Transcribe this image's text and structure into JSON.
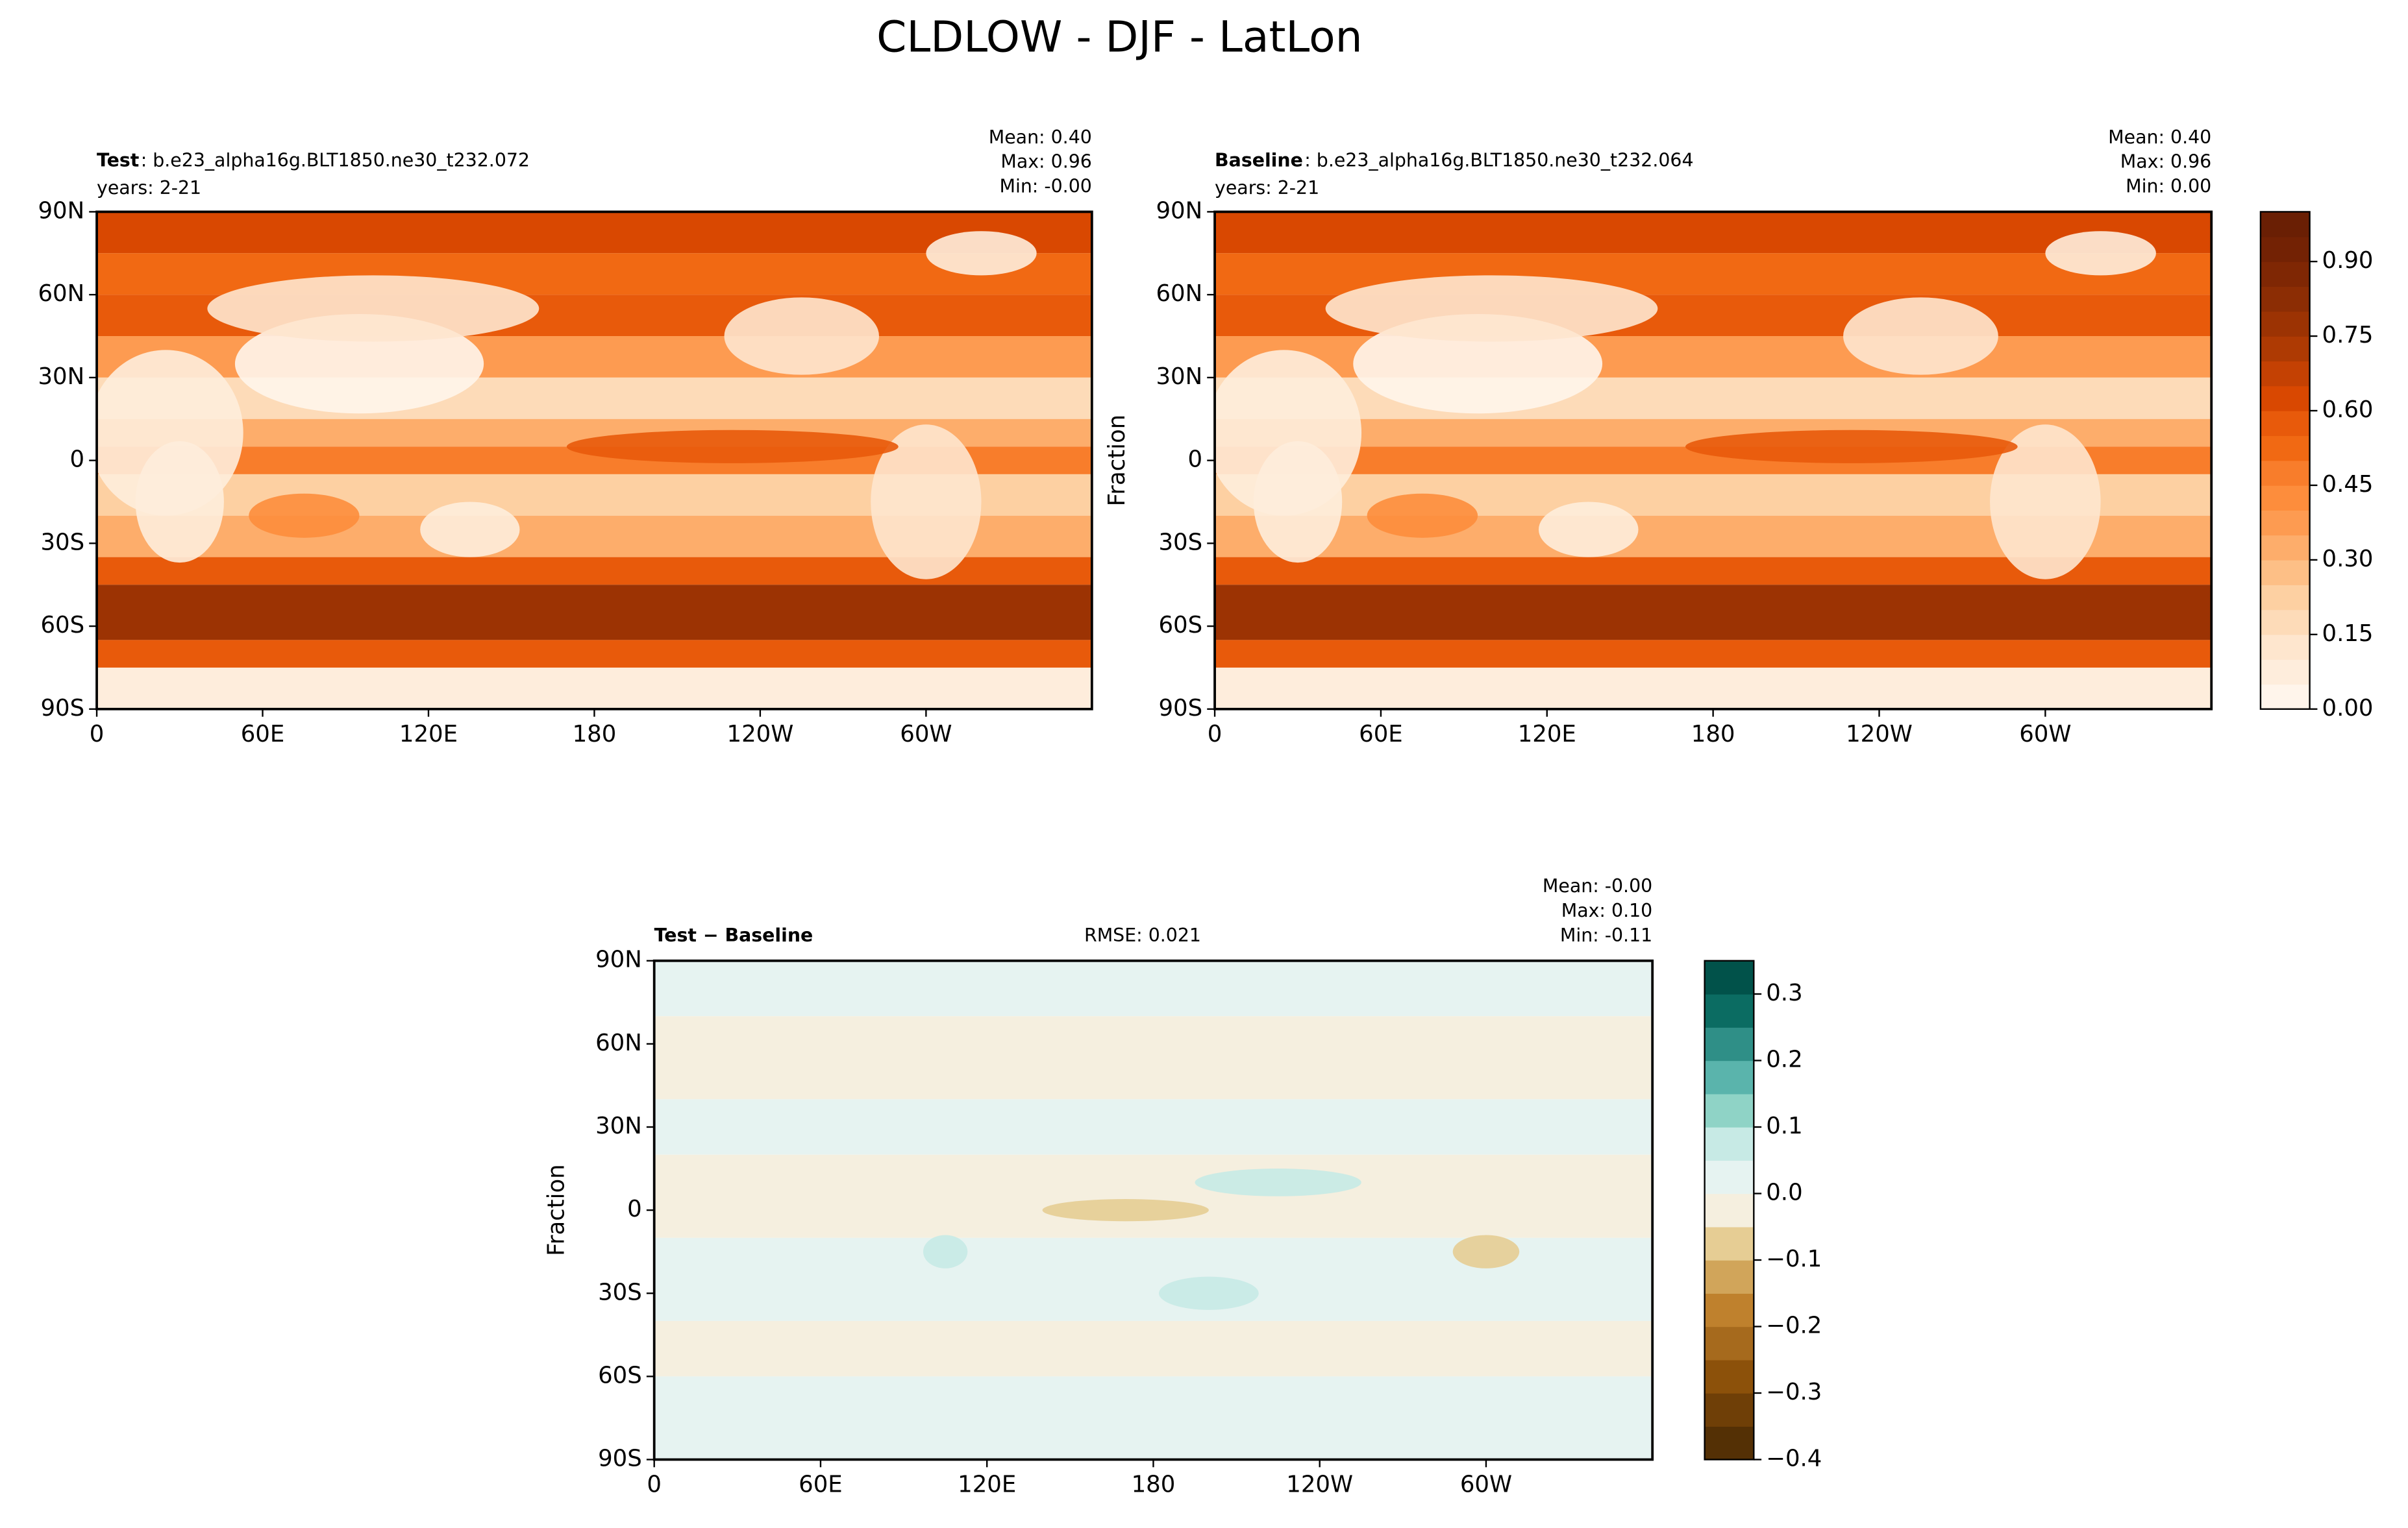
{
  "title": "CLDLOW - DJF - LatLon",
  "chart_data": [
    {
      "type": "map",
      "label": "Test",
      "case": ": b.e23_alpha16g.BLT1850.ne30_t232.072",
      "years": "years: 2-21",
      "stats": [
        "Mean:  0.40",
        "Max:  0.96",
        "Min: -0.00"
      ],
      "xlim": [
        0,
        360
      ],
      "ylim": [
        -90,
        90
      ],
      "xticks": [
        0,
        {
          "value": 60,
          "label": "60E"
        },
        {
          "value": 120,
          "label": "120E"
        },
        180,
        {
          "value": 240,
          "label": "120W"
        },
        {
          "value": 300,
          "label": "60W"
        }
      ],
      "yticks": [
        {
          "value": -90,
          "label": "90S"
        },
        {
          "value": -60,
          "label": "60S"
        },
        {
          "value": -30,
          "label": "30S"
        },
        0,
        {
          "value": 30,
          "label": "30N"
        },
        {
          "value": 60,
          "label": "60N"
        },
        {
          "value": 90,
          "label": "90N"
        }
      ]
    },
    {
      "type": "map",
      "label": "Baseline",
      "case": ": b.e23_alpha16g.BLT1850.ne30_t232.064",
      "years": "years: 2-21",
      "stats": [
        "Mean:  0.40",
        "Max:  0.96",
        "Min:  0.00"
      ],
      "ylabel": "Fraction",
      "xlim": [
        0,
        360
      ],
      "ylim": [
        -90,
        90
      ],
      "xticks": [
        0,
        {
          "value": 60,
          "label": "60E"
        },
        {
          "value": 120,
          "label": "120E"
        },
        180,
        {
          "value": 240,
          "label": "120W"
        },
        {
          "value": 300,
          "label": "60W"
        }
      ],
      "yticks": [
        {
          "value": -90,
          "label": "90S"
        },
        {
          "value": -60,
          "label": "60S"
        },
        {
          "value": -30,
          "label": "30S"
        },
        0,
        {
          "value": 30,
          "label": "30N"
        },
        {
          "value": 60,
          "label": "60N"
        },
        {
          "value": 90,
          "label": "90N"
        }
      ],
      "colorbar": {
        "lim": [
          0,
          1
        ],
        "ticks": [
          {
            "value": 0,
            "label": "0.00"
          },
          {
            "value": 0.15,
            "label": "0.15"
          },
          {
            "value": 0.3,
            "label": "0.30"
          },
          {
            "value": 0.45,
            "label": "0.45"
          },
          {
            "value": 0.6,
            "label": "0.60"
          },
          {
            "value": 0.75,
            "label": "0.75"
          },
          {
            "value": 0.9,
            "label": "0.90"
          }
        ],
        "colors": [
          "#fff5eb",
          "#feeddc",
          "#fee6ce",
          "#fddbb8",
          "#fdd0a2",
          "#fdbf86",
          "#fdad6b",
          "#fd9b51",
          "#fd8d3c",
          "#f87d2b",
          "#f16913",
          "#e85a0b",
          "#d94801",
          "#c44103",
          "#ae3a03",
          "#9c3303",
          "#8c2d04",
          "#7f2704",
          "#732204",
          "#6a1f04"
        ]
      }
    },
    {
      "type": "map",
      "label": "Test − Baseline",
      "rmse": "RMSE: 0.021",
      "stats": [
        "Mean: -0.00",
        "Max:  0.10",
        "Min: -0.11"
      ],
      "ylabel": "Fraction",
      "xlim": [
        0,
        360
      ],
      "ylim": [
        -90,
        90
      ],
      "xticks": [
        0,
        {
          "value": 60,
          "label": "60E"
        },
        {
          "value": 120,
          "label": "120E"
        },
        180,
        {
          "value": 240,
          "label": "120W"
        },
        {
          "value": 300,
          "label": "60W"
        }
      ],
      "yticks": [
        {
          "value": -90,
          "label": "90S"
        },
        {
          "value": -60,
          "label": "60S"
        },
        {
          "value": -30,
          "label": "30S"
        },
        0,
        {
          "value": 30,
          "label": "30N"
        },
        {
          "value": 60,
          "label": "60N"
        },
        {
          "value": 90,
          "label": "90N"
        }
      ],
      "colorbar": {
        "lim": [
          -0.4,
          0.35
        ],
        "ticks": [
          {
            "value": -0.4,
            "label": "−0.4"
          },
          {
            "value": -0.3,
            "label": "−0.3"
          },
          {
            "value": -0.2,
            "label": "−0.2"
          },
          {
            "value": -0.1,
            "label": "−0.1"
          },
          {
            "value": 0,
            "label": "0.0"
          },
          0.1,
          0.2,
          0.3
        ],
        "colors": [
          "#543005",
          "#6f3f07",
          "#8c510a",
          "#a66a1d",
          "#bf812d",
          "#d1a55a",
          "#e6cd94",
          "#f5efdf",
          "#e6f3f1",
          "#c7eae5",
          "#8fd3c6",
          "#5ab4ac",
          "#2f8f87",
          "#0b6c62",
          "#01524a"
        ]
      }
    }
  ]
}
